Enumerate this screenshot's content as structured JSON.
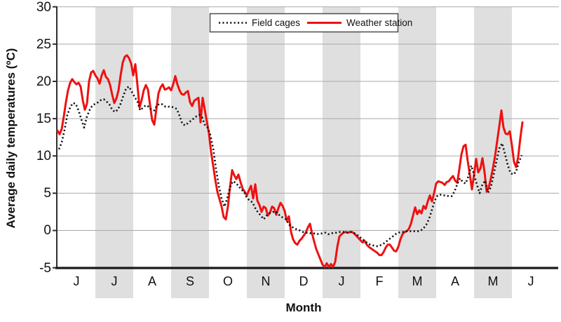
{
  "chart_data": {
    "type": "line",
    "title": "",
    "grid": "horizontal",
    "legend_position": "top-center",
    "x_axis": {
      "label": "Month",
      "months": [
        "J",
        "J",
        "A",
        "S",
        "O",
        "N",
        "D",
        "J",
        "F",
        "M",
        "A",
        "M",
        "J"
      ],
      "shaded_months": [
        1,
        3,
        5,
        7,
        9,
        11
      ]
    },
    "y_axis": {
      "label": "Average daily temperatures (ºC)",
      "min": -5,
      "max": 30,
      "ticks": [
        30,
        25,
        20,
        15,
        10,
        5,
        0,
        -5
      ]
    },
    "series": [
      {
        "name": "Weather station",
        "style": "solid",
        "color": "#ee1111",
        "start_month": 0.0,
        "step_month": 0.055556,
        "temps_c": [
          13.4,
          12.9,
          13.6,
          15.3,
          17.2,
          18.8,
          19.8,
          20.3,
          19.9,
          19.6,
          19.8,
          19.3,
          17.5,
          16.2,
          17.0,
          20.0,
          21.2,
          21.4,
          20.8,
          20.4,
          19.7,
          20.8,
          21.5,
          20.6,
          20.3,
          19.5,
          18.2,
          17.1,
          17.7,
          18.8,
          20.8,
          22.5,
          23.3,
          23.5,
          23.1,
          22.4,
          20.8,
          22.3,
          19.5,
          16.5,
          17.5,
          18.8,
          19.5,
          18.9,
          16.8,
          14.8,
          14.2,
          16.3,
          18.4,
          19.2,
          19.6,
          18.9,
          19.0,
          19.2,
          18.8,
          19.6,
          20.7,
          19.6,
          18.8,
          18.3,
          18.2,
          18.5,
          18.7,
          17.2,
          16.7,
          17.4,
          17.6,
          17.8,
          14.5,
          17.8,
          16.2,
          14.6,
          13.0,
          10.5,
          8.7,
          6.8,
          5.2,
          4.2,
          3.2,
          1.8,
          1.5,
          3.2,
          5.8,
          8.1,
          7.4,
          6.9,
          7.5,
          6.5,
          5.6,
          5.2,
          4.7,
          5.4,
          6.0,
          4.3,
          6.2,
          4.0,
          3.4,
          2.5,
          3.2,
          3.0,
          2.0,
          2.4,
          3.2,
          3.0,
          2.1,
          3.0,
          3.7,
          3.3,
          2.6,
          1.3,
          1.9,
          -0.2,
          -1.2,
          -1.7,
          -1.9,
          -1.4,
          -1.1,
          -0.7,
          -0.3,
          0.4,
          0.9,
          -0.4,
          -1.5,
          -2.5,
          -3.2,
          -3.9,
          -4.6,
          -4.9,
          -4.4,
          -4.9,
          -4.5,
          -4.9,
          -4.2,
          -2.2,
          -0.8,
          -0.5,
          -0.3,
          -0.2,
          -0.3,
          -0.2,
          -0.2,
          -0.4,
          -0.7,
          -1.0,
          -1.3,
          -1.6,
          -1.4,
          -1.9,
          -2.2,
          -2.4,
          -2.6,
          -2.8,
          -3.0,
          -3.3,
          -3.3,
          -2.9,
          -2.3,
          -1.9,
          -1.9,
          -2.3,
          -2.7,
          -2.8,
          -2.2,
          -1.2,
          -0.5,
          -0.2,
          -0.1,
          0.2,
          0.9,
          2.0,
          3.1,
          2.2,
          2.7,
          2.3,
          3.3,
          2.9,
          3.9,
          4.7,
          3.9,
          5.0,
          6.3,
          6.6,
          6.5,
          6.4,
          6.1,
          6.5,
          6.6,
          7.0,
          7.3,
          6.7,
          6.4,
          8.2,
          10.2,
          11.3,
          11.5,
          9.3,
          7.5,
          5.5,
          7.5,
          9.6,
          7.8,
          8.3,
          9.7,
          7.8,
          5.2,
          5.8,
          7.0,
          8.4,
          10.0,
          12.0,
          14.0,
          16.1,
          13.8,
          13.0,
          12.9,
          13.3,
          11.4,
          9.2,
          8.5,
          9.9,
          12.4,
          14.5
        ]
      },
      {
        "name": "Field cages",
        "style": "dotted",
        "color": "#111111",
        "start_month": 0.037,
        "step_month": 0.074074,
        "temps_c": [
          10.9,
          11.8,
          13.5,
          15.5,
          16.5,
          17.1,
          17.0,
          16.1,
          14.9,
          13.8,
          15.3,
          16.2,
          16.8,
          17.0,
          17.2,
          17.5,
          17.6,
          17.3,
          16.9,
          16.2,
          15.9,
          16.2,
          17.0,
          18.1,
          19.1,
          19.3,
          18.6,
          17.9,
          17.3,
          16.1,
          16.5,
          16.8,
          16.6,
          16.2,
          16.1,
          16.8,
          17.0,
          16.9,
          16.6,
          16.6,
          16.6,
          16.5,
          16.3,
          15.4,
          14.3,
          14.1,
          14.4,
          14.7,
          15.0,
          15.3,
          15.5,
          15.2,
          14.2,
          13.8,
          12.8,
          11.0,
          8.3,
          6.0,
          4.3,
          3.2,
          4.3,
          5.8,
          6.6,
          6.4,
          6.0,
          5.5,
          5.2,
          4.4,
          4.0,
          3.8,
          3.0,
          2.4,
          2.0,
          1.5,
          2.0,
          2.3,
          2.4,
          2.6,
          2.3,
          1.9,
          1.7,
          1.5,
          0.8,
          0.5,
          0.3,
          0.1,
          0.0,
          -0.2,
          -0.3,
          -0.3,
          -0.4,
          -0.4,
          -0.5,
          -0.4,
          -0.4,
          -0.3,
          -0.5,
          -0.4,
          -0.3,
          -0.3,
          -0.2,
          -0.2,
          -0.2,
          -0.3,
          -0.2,
          -0.3,
          -0.5,
          -0.8,
          -1.1,
          -1.4,
          -1.7,
          -1.9,
          -2.0,
          -2.1,
          -2.1,
          -1.9,
          -1.7,
          -1.4,
          -1.1,
          -0.8,
          -0.5,
          -0.3,
          -0.2,
          -0.2,
          -0.1,
          -0.1,
          -0.1,
          -0.1,
          -0.1,
          0.0,
          0.3,
          0.8,
          1.6,
          2.8,
          4.0,
          4.7,
          4.8,
          4.7,
          4.7,
          4.6,
          4.6,
          5.2,
          6.2,
          7.0,
          6.5,
          6.3,
          7.3,
          8.7,
          7.5,
          6.2,
          5.0,
          6.2,
          6.7,
          5.1,
          5.8,
          7.5,
          9.3,
          11.0,
          11.7,
          10.3,
          8.8,
          7.7,
          7.5,
          7.9,
          9.2,
          10.1
        ]
      }
    ]
  },
  "colors": {
    "background": "#ffffff",
    "month_band": "#dfdfdf",
    "gridline": "#a9a9a9",
    "axis": "#2e2e2e",
    "bottom_axis": "#1a1a1a",
    "legend_border": "#4d4d4d",
    "weather_station": "#ee1111",
    "field_cages": "#111111"
  }
}
